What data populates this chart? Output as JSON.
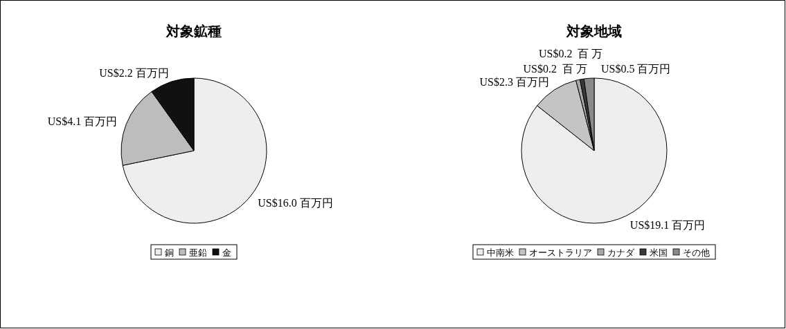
{
  "chart_data": [
    {
      "type": "pie",
      "title": "対象鉱種",
      "categories": [
        "銅",
        "亜鉛",
        "金"
      ],
      "values": [
        16.0,
        4.1,
        2.2
      ],
      "value_labels": [
        "US$16.0 百万円",
        "US$4.1 百万円",
        "US$2.2 百万円"
      ],
      "colors": [
        "#eeeeee",
        "#bdbdbd",
        "#111111"
      ],
      "legend": "bottom"
    },
    {
      "type": "pie",
      "title": "対象地域",
      "categories": [
        "中南米",
        "オーストラリア",
        "カナダ",
        "米国",
        "その他"
      ],
      "values": [
        19.1,
        2.3,
        0.2,
        0.2,
        0.5
      ],
      "value_labels": [
        "US$19.1 百万円",
        "US$2.3 百万円",
        "US$0.2  百 万",
        "US$0.2  百 万",
        "US$0.5 百万円"
      ],
      "colors": [
        "#eeeeee",
        "#c4c4c4",
        "#a8a8a8",
        "#3a3a3a",
        "#8a8a8a"
      ],
      "legend": "bottom"
    }
  ]
}
